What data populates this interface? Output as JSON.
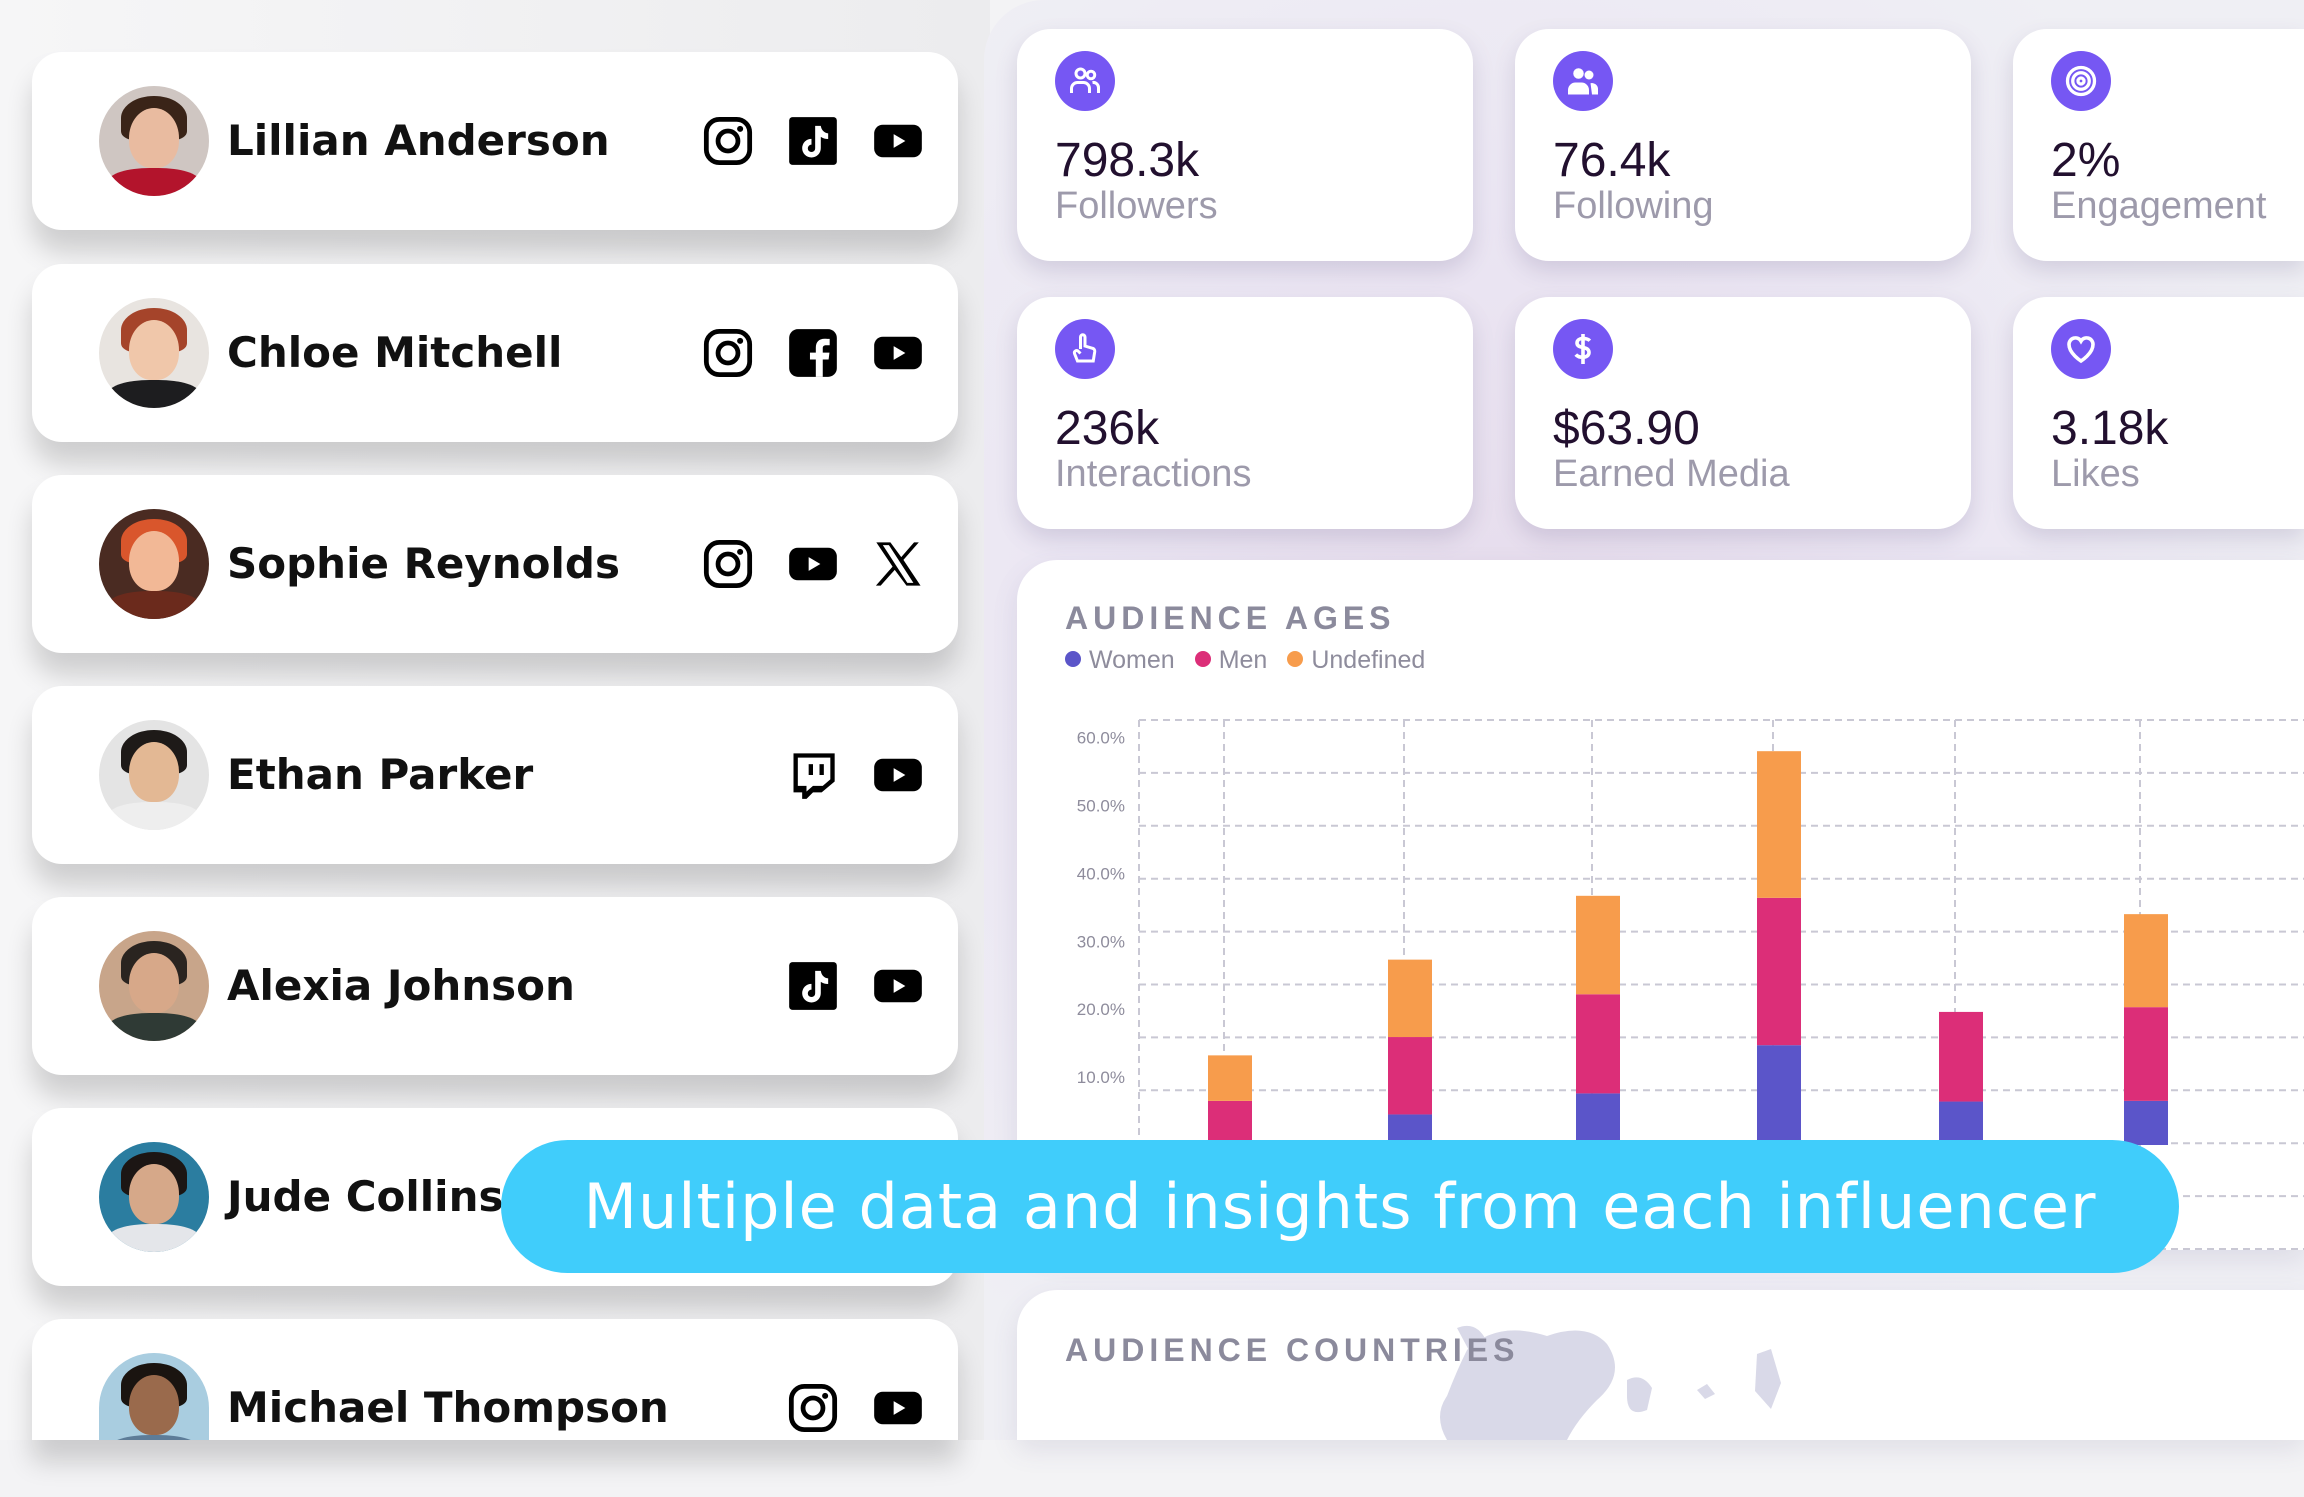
{
  "influencers": [
    {
      "name": "Lillian Anderson",
      "platforms": [
        "instagram",
        "tiktok",
        "youtube"
      ],
      "skin": "#e9bba0",
      "hair": "#3a2418",
      "shirt": "#b3142c",
      "bg": "#cfc6c2"
    },
    {
      "name": "Chloe Mitchell",
      "platforms": [
        "instagram",
        "facebook",
        "youtube"
      ],
      "skin": "#f0c7aa",
      "hair": "#a5442a",
      "shirt": "#1d1d1f",
      "bg": "#e8e4e0"
    },
    {
      "name": "Sophie Reynolds",
      "platforms": [
        "instagram",
        "youtube",
        "x"
      ],
      "skin": "#f2b896",
      "hair": "#d9562c",
      "shirt": "#6b2a1c",
      "bg": "#4a2b22"
    },
    {
      "name": "Ethan Parker",
      "platforms": [
        "twitch",
        "youtube"
      ],
      "skin": "#e3b894",
      "hair": "#1e1a18",
      "shirt": "#eeeeee",
      "bg": "#e4e4e4"
    },
    {
      "name": "Alexia Johnson",
      "platforms": [
        "tiktok",
        "youtube"
      ],
      "skin": "#d7a889",
      "hair": "#2a2420",
      "shirt": "#2f3a35",
      "bg": "#c8a58a"
    },
    {
      "name": "Jude Collins",
      "platforms": [],
      "skin": "#d6a889",
      "hair": "#1c1614",
      "shirt": "#e4e6ea",
      "bg": "#2b7da0"
    },
    {
      "name": "Michael Thompson",
      "platforms": [
        "instagram",
        "youtube"
      ],
      "skin": "#9a6a4c",
      "hair": "#1a1410",
      "shirt": "#5d7c98",
      "bg": "#a9cde0"
    }
  ],
  "stats": [
    {
      "icon": "followers-icon",
      "value": "798.3k",
      "label": "Followers"
    },
    {
      "icon": "following-icon",
      "value": "76.4k",
      "label": "Following"
    },
    {
      "icon": "target-icon",
      "value": "2%",
      "label": "Engagement"
    },
    {
      "icon": "pointer-hand-icon",
      "value": "236k",
      "label": "Interactions"
    },
    {
      "icon": "dollar-icon",
      "value": "$63.90",
      "label": "Earned Media"
    },
    {
      "icon": "heart-icon",
      "value": "3.18k",
      "label": "Likes"
    }
  ],
  "colors": {
    "accent": "#7657f3",
    "banner": "#40cdfb",
    "women": "#5b55c9",
    "men": "#dc2e78",
    "undefined": "#f79c4c"
  },
  "audience_ages": {
    "title": "AUDIENCE AGES"
  },
  "chart_data": {
    "type": "bar",
    "stacked": true,
    "title": "AUDIENCE AGES",
    "yticks": [
      "60.0%",
      "50.0%",
      "40.0%",
      "30.0%",
      "20.0%",
      "10.0%"
    ],
    "ylim": [
      0,
      60
    ],
    "grid": true,
    "legend": "top-left",
    "series": [
      {
        "name": "Women",
        "color": "#5b55c9",
        "values": [
          0.5,
          4.5,
          7.6,
          14.7,
          6.4,
          6.5
        ]
      },
      {
        "name": "Men",
        "color": "#dc2e78",
        "values": [
          6.0,
          11.4,
          14.6,
          21.7,
          13.2,
          13.8
        ]
      },
      {
        "name": "Undefined",
        "color": "#f79c4c",
        "values": [
          6.7,
          11.4,
          14.5,
          21.6,
          0,
          13.7
        ]
      }
    ]
  },
  "audience_countries": {
    "title": "AUDIENCE COUNTRIES"
  },
  "banner": {
    "text": "Multiple data and insights from each influencer"
  }
}
